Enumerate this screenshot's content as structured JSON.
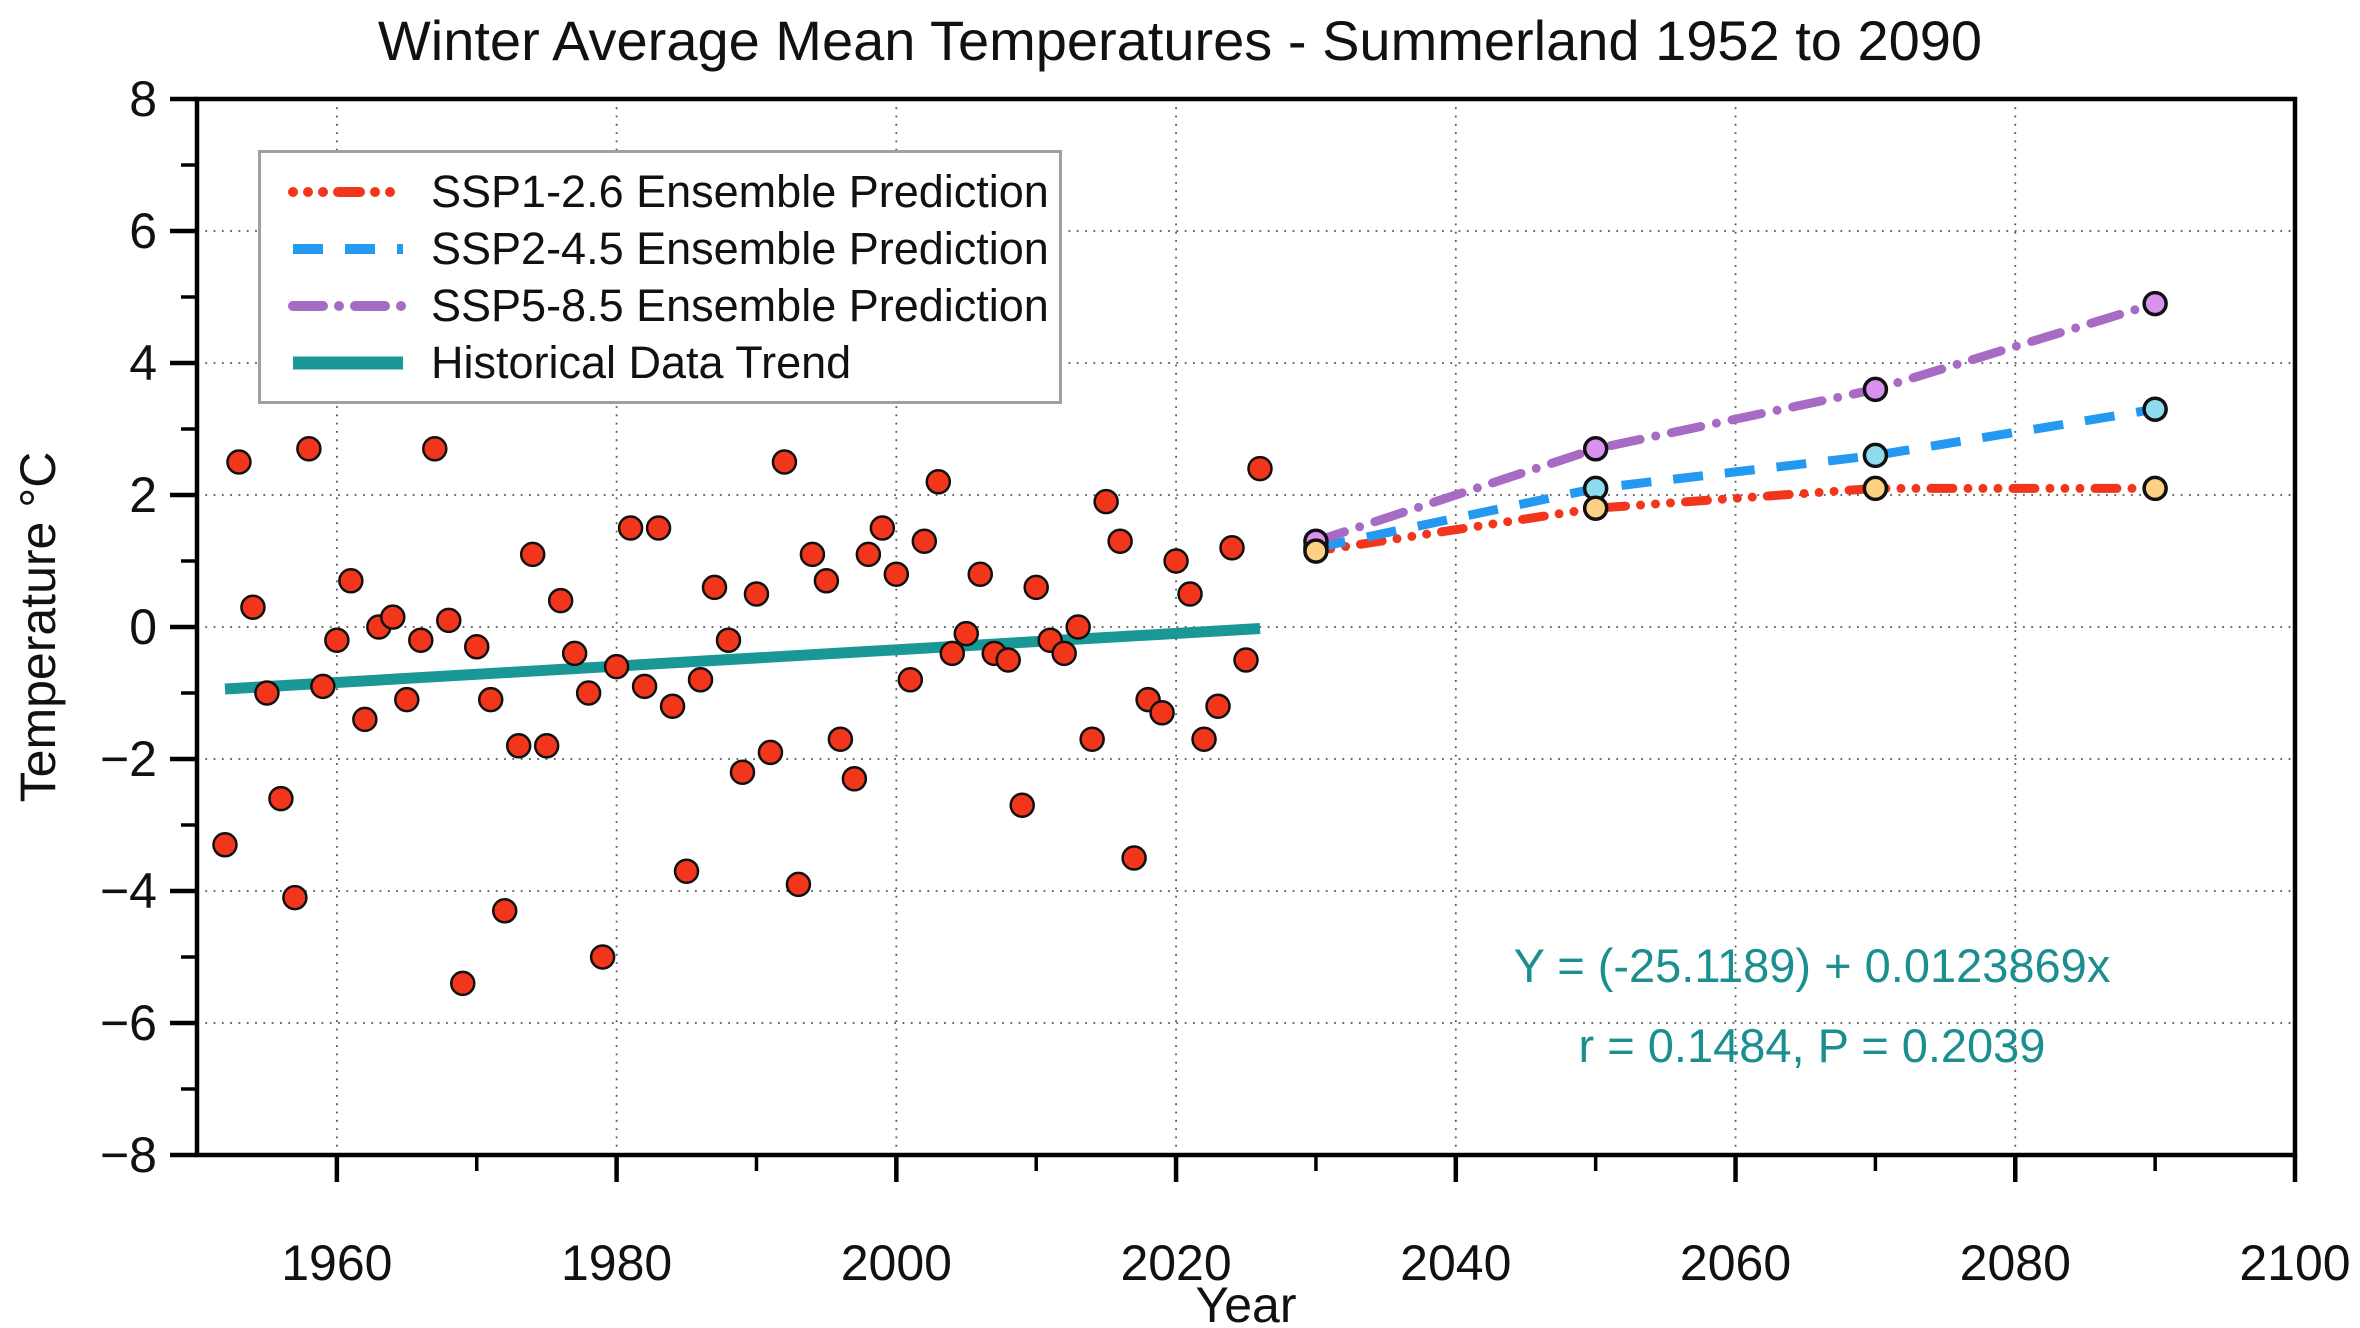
{
  "title": "Winter Average Mean Temperatures - Summerland 1952 to 2090",
  "axes": {
    "x": {
      "label": "Year",
      "range": [
        1950,
        2100
      ],
      "major_ticks": [
        1960,
        1980,
        2000,
        2020,
        2040,
        2060,
        2080,
        2100
      ],
      "minor_ticks": [
        1970,
        1990,
        2010,
        2030,
        2050,
        2070,
        2090
      ],
      "gridlines": [
        1960,
        1980,
        2000,
        2020,
        2040,
        2060,
        2080
      ],
      "tick_labels": [
        "1960",
        "1980",
        "2000",
        "2020",
        "2040",
        "2060",
        "2080",
        "2100"
      ]
    },
    "y": {
      "label": "Temperature °C",
      "range": [
        -8,
        8
      ],
      "major_ticks": [
        8,
        6,
        4,
        2,
        0,
        -2,
        -4,
        -6,
        -8
      ],
      "minor_ticks": [
        7,
        5,
        3,
        1,
        -1,
        -3,
        -5,
        -7
      ],
      "gridlines": [
        6,
        4,
        2,
        0,
        -2,
        -4,
        -6
      ],
      "tick_labels": [
        "8",
        "6",
        "4",
        "2",
        "0",
        "−2",
        "−4",
        "−6",
        "−8"
      ],
      "grid_on": true
    }
  },
  "legend": {
    "position": "upper-left",
    "items": [
      {
        "label": "SSP1-2.6 Ensemble Prediction",
        "style": "dash-dot-dot",
        "color": "#f2361b"
      },
      {
        "label": "SSP2-4.5 Ensemble Prediction",
        "style": "dashed",
        "color": "#2499f2"
      },
      {
        "label": "SSP5-8.5 Ensemble Prediction",
        "style": "dash-dot",
        "color": "#a76bc4"
      },
      {
        "label": "Historical Data Trend",
        "style": "solid",
        "color": "#1a9898"
      }
    ]
  },
  "annotation": {
    "line1": "Y = (-25.1189) + 0.0123869x",
    "line2": "r = 0.1484, P = 0.2039",
    "color": "#1b8f8f"
  },
  "colors": {
    "scatter_fill": "#f2361b",
    "scatter_edge": "#111111",
    "trend": "#1a9898",
    "ssp1_line": "#f2361b",
    "ssp2_line": "#2499f2",
    "ssp5_line": "#a76bc4",
    "ssp1_marker_fill": "#fdd083",
    "ssp2_marker_fill": "#8edbee",
    "ssp5_marker_fill": "#d991ef",
    "marker_edge": "#111111",
    "grid": "#555555",
    "axis": "#000000"
  },
  "chart_data": {
    "type": "scatter",
    "title": "Winter Average Mean Temperatures - Summerland 1952 to 2090",
    "xlabel": "Year",
    "ylabel": "Temperature °C",
    "xlim": [
      1950,
      2100
    ],
    "ylim": [
      -8,
      8
    ],
    "historical_points": [
      [
        1952,
        -3.3
      ],
      [
        1953,
        2.5
      ],
      [
        1954,
        0.3
      ],
      [
        1955,
        -1.0
      ],
      [
        1956,
        -2.6
      ],
      [
        1957,
        -4.1
      ],
      [
        1958,
        2.7
      ],
      [
        1959,
        -0.9
      ],
      [
        1960,
        -0.2
      ],
      [
        1961,
        0.7
      ],
      [
        1962,
        -1.4
      ],
      [
        1963,
        0.0
      ],
      [
        1964,
        0.15
      ],
      [
        1965,
        -1.1
      ],
      [
        1966,
        -0.2
      ],
      [
        1967,
        2.7
      ],
      [
        1968,
        0.1
      ],
      [
        1969,
        -5.4
      ],
      [
        1970,
        -0.3
      ],
      [
        1971,
        -1.1
      ],
      [
        1972,
        -4.3
      ],
      [
        1973,
        -1.8
      ],
      [
        1974,
        1.1
      ],
      [
        1975,
        -1.8
      ],
      [
        1976,
        0.4
      ],
      [
        1977,
        -0.4
      ],
      [
        1978,
        -1.0
      ],
      [
        1979,
        -5.0
      ],
      [
        1980,
        -0.6
      ],
      [
        1981,
        1.5
      ],
      [
        1982,
        -0.9
      ],
      [
        1983,
        1.5
      ],
      [
        1984,
        -1.2
      ],
      [
        1985,
        -3.7
      ],
      [
        1986,
        -0.8
      ],
      [
        1987,
        0.6
      ],
      [
        1988,
        -0.2
      ],
      [
        1989,
        -2.2
      ],
      [
        1990,
        0.5
      ],
      [
        1991,
        -1.9
      ],
      [
        1992,
        2.5
      ],
      [
        1993,
        -3.9
      ],
      [
        1994,
        1.1
      ],
      [
        1995,
        0.7
      ],
      [
        1996,
        -1.7
      ],
      [
        1997,
        -2.3
      ],
      [
        1998,
        1.1
      ],
      [
        1999,
        1.5
      ],
      [
        2000,
        0.8
      ],
      [
        2001,
        -0.8
      ],
      [
        2002,
        1.3
      ],
      [
        2003,
        2.2
      ],
      [
        2004,
        -0.4
      ],
      [
        2005,
        -0.1
      ],
      [
        2006,
        0.8
      ],
      [
        2007,
        -0.4
      ],
      [
        2008,
        -0.5
      ],
      [
        2009,
        -2.7
      ],
      [
        2010,
        0.6
      ],
      [
        2011,
        -0.2
      ],
      [
        2012,
        -0.4
      ],
      [
        2013,
        0.0
      ],
      [
        2014,
        -1.7
      ],
      [
        2015,
        1.9
      ],
      [
        2016,
        1.3
      ],
      [
        2017,
        -3.5
      ],
      [
        2018,
        -1.1
      ],
      [
        2019,
        -1.3
      ],
      [
        2020,
        1.0
      ],
      [
        2021,
        0.5
      ],
      [
        2022,
        -1.7
      ],
      [
        2023,
        -1.2
      ],
      [
        2024,
        1.2
      ],
      [
        2025,
        -0.5
      ],
      [
        2026,
        2.4
      ]
    ],
    "trend": {
      "name": "Historical Data Trend",
      "equation": {
        "intercept": -25.1189,
        "slope": 0.0123869
      },
      "x_start": 1952,
      "x_end": 2026,
      "r": 0.1484,
      "P": 0.2039
    },
    "predictions": {
      "x": [
        2030,
        2050,
        2070,
        2090
      ],
      "series": [
        {
          "name": "SSP1-2.6 Ensemble Prediction",
          "style": "dash-dot-dot",
          "values": [
            1.15,
            1.8,
            2.1,
            2.1
          ]
        },
        {
          "name": "SSP2-4.5 Ensemble Prediction",
          "style": "dashed",
          "values": [
            1.2,
            2.1,
            2.6,
            3.3
          ]
        },
        {
          "name": "SSP5-8.5 Ensemble Prediction",
          "style": "dash-dot",
          "values": [
            1.3,
            2.7,
            3.6,
            4.9
          ]
        }
      ]
    }
  }
}
